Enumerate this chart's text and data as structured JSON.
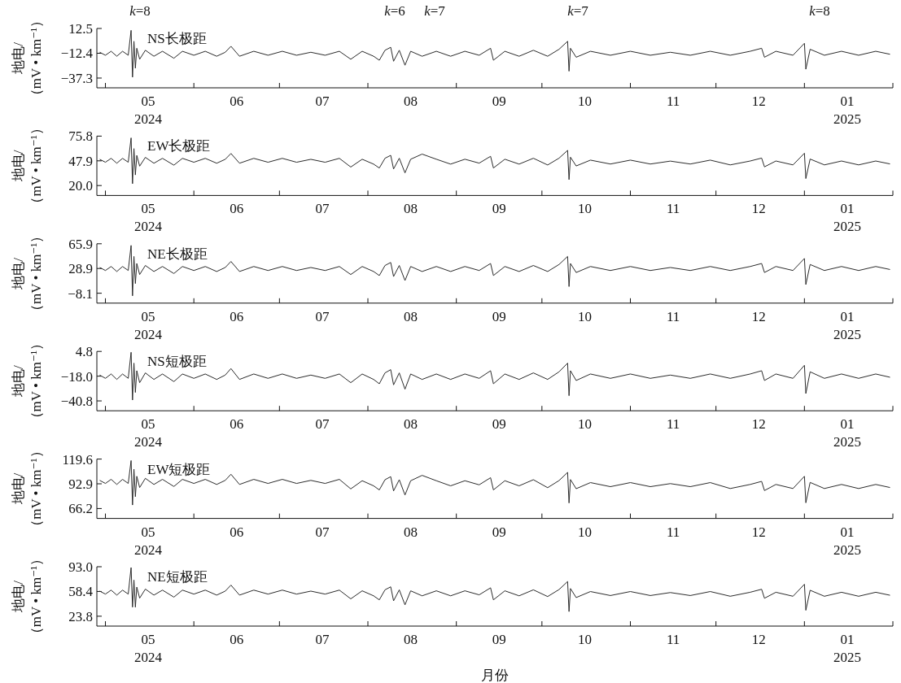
{
  "chart_data": [
    {
      "type": "line",
      "ylabel": "地电/（mV • km⁻¹）",
      "annotations": [
        "k=8",
        "k=6",
        "k=7",
        "k=7",
        "k=8"
      ],
      "xlim": [
        "2024-04-28",
        "2025-02-01"
      ],
      "ylim": [
        -47.1,
        12.5
      ],
      "yticks": [
        12.5,
        {
          "value": -12.4,
          "label": "−12.4"
        },
        {
          "value": -37.3,
          "label": "−37.3"
        }
      ],
      "xticks": [
        {
          "value": "2024-05-01",
          "label": null
        },
        {
          "value": "2024-06-01",
          "label": null
        },
        {
          "value": "2024-07-01",
          "label": null
        },
        {
          "value": "2024-08-01",
          "label": null
        },
        {
          "value": "2024-09-01",
          "label": null
        },
        {
          "value": "2024-10-01",
          "label": null
        },
        {
          "value": "2024-11-01",
          "label": null
        },
        {
          "value": "2024-12-01",
          "label": null
        },
        {
          "value": "2025-01-01",
          "label": null
        },
        {
          "value": "2025-02-01",
          "label": null
        },
        {
          "value": "2024-05-16",
          "label": "05\n2024"
        },
        {
          "value": "2024-06-16",
          "label": "06"
        },
        {
          "value": "2024-07-16",
          "label": "07"
        },
        {
          "value": "2024-08-16",
          "label": "08"
        },
        {
          "value": "2024-09-16",
          "label": "09"
        },
        {
          "value": "2024-10-16",
          "label": "10"
        },
        {
          "value": "2024-11-16",
          "label": "11"
        },
        {
          "value": "2024-12-16",
          "label": "12"
        },
        {
          "value": "2025-01-16",
          "label": "01\n2025"
        }
      ],
      "x": [
        "2024-04-29",
        "2024-05-01",
        "2024-05-03",
        "2024-05-05",
        "2024-05-07",
        "2024-05-09",
        "2024-05-10T00:00",
        "2024-05-10T12:00",
        "2024-05-11T00:00",
        "2024-05-11T12:00",
        "2024-05-12",
        "2024-05-13",
        "2024-05-15",
        "2024-05-18",
        "2024-05-21",
        "2024-05-25",
        "2024-05-28",
        "2024-06-01",
        "2024-06-05",
        "2024-06-09",
        "2024-06-12",
        "2024-06-14",
        "2024-06-17",
        "2024-06-22",
        "2024-06-27",
        "2024-07-02",
        "2024-07-07",
        "2024-07-12",
        "2024-07-17",
        "2024-07-22",
        "2024-07-26",
        "2024-07-30",
        "2024-08-03",
        "2024-08-05",
        "2024-08-07",
        "2024-08-09",
        "2024-08-10",
        "2024-08-12",
        "2024-08-14",
        "2024-08-16",
        "2024-08-20",
        "2024-08-25",
        "2024-08-30",
        "2024-09-04",
        "2024-09-09",
        "2024-09-13",
        "2024-09-14",
        "2024-09-18",
        "2024-09-23",
        "2024-09-28",
        "2024-10-03",
        "2024-10-07",
        "2024-10-10T00:00",
        "2024-10-10T12:00",
        "2024-10-11",
        "2024-10-13",
        "2024-10-18",
        "2024-10-25",
        "2024-11-01",
        "2024-11-08",
        "2024-11-15",
        "2024-11-22",
        "2024-11-29",
        "2024-12-06",
        "2024-12-13",
        "2024-12-17",
        "2024-12-18",
        "2024-12-22",
        "2024-12-28",
        "2025-01-01T00:00",
        "2025-01-01T12:00",
        "2025-01-03",
        "2025-01-08",
        "2025-01-14",
        "2025-01-20",
        "2025-01-26",
        "2025-01-31"
      ],
      "series": [
        {
          "name": "NS长极距",
          "color": "#2b2b2b",
          "values": [
            -11.4,
            -14.4,
            -10.4,
            -15.4,
            -10.4,
            -14.4,
            10.6,
            -36.4,
            -0.4,
            -27.4,
            -7.4,
            -18.4,
            -9.4,
            -15.4,
            -10.4,
            -17.4,
            -10.4,
            -14.4,
            -10.4,
            -15.4,
            -11.4,
            -5.4,
            -15.4,
            -10.4,
            -14.4,
            -10.4,
            -14.4,
            -11.4,
            -14.4,
            -10.4,
            -18.4,
            -10.4,
            -15.4,
            -19.4,
            -9.4,
            -6.4,
            -20.4,
            -9.4,
            -24.4,
            -10.4,
            -15.4,
            -10.4,
            -15.4,
            -10.4,
            -14.4,
            -7.4,
            -19.4,
            -10.4,
            -15.4,
            -9.4,
            -15.4,
            -8.4,
            -0.4,
            -30.4,
            -7.4,
            -16.4,
            -10.4,
            -14.4,
            -10.4,
            -14.4,
            -11.4,
            -14.4,
            -10.4,
            -14.4,
            -10.4,
            -7.4,
            -16.4,
            -10.4,
            -14.4,
            -2.4,
            -28.4,
            -8.4,
            -14.4,
            -10.4,
            -14.4,
            -10.4,
            -13.4
          ]
        }
      ]
    },
    {
      "type": "line",
      "ylabel": "地电/（mV • km⁻¹）",
      "xlim": [
        "2024-04-28",
        "2025-02-01"
      ],
      "ylim": [
        8.8,
        75.8
      ],
      "yticks": [
        75.8,
        47.9,
        {
          "value": 20,
          "label": "20.0"
        }
      ],
      "xticks": [
        {
          "value": "2024-05-01",
          "label": null
        },
        {
          "value": "2024-06-01",
          "label": null
        },
        {
          "value": "2024-07-01",
          "label": null
        },
        {
          "value": "2024-08-01",
          "label": null
        },
        {
          "value": "2024-09-01",
          "label": null
        },
        {
          "value": "2024-10-01",
          "label": null
        },
        {
          "value": "2024-11-01",
          "label": null
        },
        {
          "value": "2024-12-01",
          "label": null
        },
        {
          "value": "2025-01-01",
          "label": null
        },
        {
          "value": "2025-02-01",
          "label": null
        },
        {
          "value": "2024-05-16",
          "label": "05\n2024"
        },
        {
          "value": "2024-06-16",
          "label": "06"
        },
        {
          "value": "2024-07-16",
          "label": "07"
        },
        {
          "value": "2024-08-16",
          "label": "08"
        },
        {
          "value": "2024-09-16",
          "label": "09"
        },
        {
          "value": "2024-10-16",
          "label": "10"
        },
        {
          "value": "2024-11-16",
          "label": "11"
        },
        {
          "value": "2024-12-16",
          "label": "12"
        },
        {
          "value": "2025-01-16",
          "label": "01\n2025"
        }
      ],
      "x": [
        "2024-04-29",
        "2024-05-01",
        "2024-05-03",
        "2024-05-05",
        "2024-05-07",
        "2024-05-09",
        "2024-05-10T00:00",
        "2024-05-10T12:00",
        "2024-05-11T00:00",
        "2024-05-11T12:00",
        "2024-05-12",
        "2024-05-13",
        "2024-05-15",
        "2024-05-18",
        "2024-05-21",
        "2024-05-25",
        "2024-05-28",
        "2024-06-01",
        "2024-06-05",
        "2024-06-09",
        "2024-06-12",
        "2024-06-14",
        "2024-06-17",
        "2024-06-22",
        "2024-06-27",
        "2024-07-02",
        "2024-07-07",
        "2024-07-12",
        "2024-07-17",
        "2024-07-22",
        "2024-07-26",
        "2024-07-30",
        "2024-08-03",
        "2024-08-05",
        "2024-08-07",
        "2024-08-09",
        "2024-08-10",
        "2024-08-12",
        "2024-08-14",
        "2024-08-16",
        "2024-08-20",
        "2024-08-25",
        "2024-08-30",
        "2024-09-04",
        "2024-09-09",
        "2024-09-13",
        "2024-09-14",
        "2024-09-18",
        "2024-09-23",
        "2024-09-28",
        "2024-10-03",
        "2024-10-07",
        "2024-10-10T00:00",
        "2024-10-10T12:00",
        "2024-10-11",
        "2024-10-13",
        "2024-10-18",
        "2024-10-25",
        "2024-11-01",
        "2024-11-08",
        "2024-11-15",
        "2024-11-22",
        "2024-11-29",
        "2024-12-06",
        "2024-12-13",
        "2024-12-17",
        "2024-12-18",
        "2024-12-22",
        "2024-12-28",
        "2025-01-01T00:00",
        "2025-01-01T12:00",
        "2025-01-03",
        "2025-01-08",
        "2025-01-14",
        "2025-01-20",
        "2025-01-26",
        "2025-01-31"
      ],
      "series": [
        {
          "name": "EW长极距",
          "color": "#2b2b2b",
          "values": [
            49.6,
            46.3,
            50.7,
            45.2,
            50.7,
            46.3,
            73.8,
            22.1,
            61.7,
            32.0,
            54.0,
            41.9,
            51.8,
            45.2,
            50.7,
            43.0,
            50.7,
            46.3,
            50.7,
            45.2,
            49.6,
            56.2,
            45.2,
            50.7,
            46.3,
            50.7,
            46.3,
            49.6,
            46.3,
            50.7,
            40.9,
            49.7,
            44.2,
            39.8,
            50.8,
            54.1,
            38.7,
            50.8,
            34.3,
            49.7,
            55.5,
            49.7,
            44.2,
            49.7,
            45.3,
            53.0,
            39.8,
            49.7,
            44.2,
            50.8,
            43.2,
            50.9,
            59.7,
            26.7,
            52.0,
            42.1,
            48.7,
            44.3,
            48.7,
            44.3,
            47.6,
            44.3,
            48.7,
            43.3,
            47.7,
            51.0,
            41.1,
            47.7,
            43.3,
            56.5,
            27.9,
            49.9,
            43.3,
            47.7,
            43.3,
            47.7,
            44.4
          ]
        }
      ]
    },
    {
      "type": "line",
      "ylabel": "地电/（mV • km⁻¹）",
      "xlim": [
        "2024-04-28",
        "2025-02-01"
      ],
      "ylim": [
        -22.9,
        65.9
      ],
      "yticks": [
        65.9,
        28.9,
        {
          "value": -8.1,
          "label": "−8.1"
        }
      ],
      "xticks": [
        {
          "value": "2024-05-01",
          "label": null
        },
        {
          "value": "2024-06-01",
          "label": null
        },
        {
          "value": "2024-07-01",
          "label": null
        },
        {
          "value": "2024-08-01",
          "label": null
        },
        {
          "value": "2024-09-01",
          "label": null
        },
        {
          "value": "2024-10-01",
          "label": null
        },
        {
          "value": "2024-11-01",
          "label": null
        },
        {
          "value": "2024-12-01",
          "label": null
        },
        {
          "value": "2025-01-01",
          "label": null
        },
        {
          "value": "2025-02-01",
          "label": null
        },
        {
          "value": "2024-05-16",
          "label": "05\n2024"
        },
        {
          "value": "2024-06-16",
          "label": "06"
        },
        {
          "value": "2024-07-16",
          "label": "07"
        },
        {
          "value": "2024-08-16",
          "label": "08"
        },
        {
          "value": "2024-09-16",
          "label": "09"
        },
        {
          "value": "2024-10-16",
          "label": "10"
        },
        {
          "value": "2024-11-16",
          "label": "11"
        },
        {
          "value": "2024-12-16",
          "label": "12"
        },
        {
          "value": "2025-01-16",
          "label": "01\n2025"
        }
      ],
      "x": [
        "2024-04-29",
        "2024-05-01",
        "2024-05-03",
        "2024-05-05",
        "2024-05-07",
        "2024-05-09",
        "2024-05-10T00:00",
        "2024-05-10T12:00",
        "2024-05-11T00:00",
        "2024-05-11T12:00",
        "2024-05-12",
        "2024-05-13",
        "2024-05-15",
        "2024-05-18",
        "2024-05-21",
        "2024-05-25",
        "2024-05-28",
        "2024-06-01",
        "2024-06-05",
        "2024-06-09",
        "2024-06-12",
        "2024-06-14",
        "2024-06-17",
        "2024-06-22",
        "2024-06-27",
        "2024-07-02",
        "2024-07-07",
        "2024-07-12",
        "2024-07-17",
        "2024-07-22",
        "2024-07-26",
        "2024-07-30",
        "2024-08-03",
        "2024-08-05",
        "2024-08-07",
        "2024-08-09",
        "2024-08-10",
        "2024-08-12",
        "2024-08-14",
        "2024-08-16",
        "2024-08-20",
        "2024-08-25",
        "2024-08-30",
        "2024-09-04",
        "2024-09-09",
        "2024-09-13",
        "2024-09-14",
        "2024-09-18",
        "2024-09-23",
        "2024-09-28",
        "2024-10-03",
        "2024-10-07",
        "2024-10-10T00:00",
        "2024-10-10T12:00",
        "2024-10-11",
        "2024-10-13",
        "2024-10-18",
        "2024-10-25",
        "2024-11-01",
        "2024-11-08",
        "2024-11-15",
        "2024-11-22",
        "2024-11-29",
        "2024-12-06",
        "2024-12-13",
        "2024-12-17",
        "2024-12-18",
        "2024-12-22",
        "2024-12-28",
        "2025-01-01T00:00",
        "2025-01-01T12:00",
        "2025-01-03",
        "2025-01-08",
        "2025-01-14",
        "2025-01-20",
        "2025-01-26",
        "2025-01-31"
      ],
      "series": [
        {
          "name": "NE长极距",
          "color": "#2b2b2b",
          "values": [
            30.4,
            25.9,
            31.9,
            24.4,
            31.9,
            25.9,
            63.4,
            -12.0,
            46.9,
            6.4,
            36.4,
            19.9,
            33.4,
            24.4,
            31.9,
            21.4,
            31.9,
            25.9,
            31.9,
            24.4,
            30.4,
            39.4,
            24.4,
            31.9,
            25.9,
            31.9,
            25.9,
            30.4,
            25.9,
            31.9,
            19.9,
            31.9,
            24.4,
            18.4,
            33.4,
            37.9,
            16.9,
            33.4,
            10.9,
            31.9,
            24.4,
            31.9,
            24.4,
            31.9,
            25.9,
            36.4,
            18.4,
            31.9,
            24.4,
            33.4,
            24.4,
            34.9,
            46.9,
            1.9,
            36.4,
            22.9,
            31.9,
            25.9,
            31.9,
            25.9,
            30.4,
            25.9,
            31.9,
            25.9,
            31.9,
            36.4,
            22.9,
            31.9,
            25.9,
            43.9,
            4.9,
            34.9,
            25.9,
            31.9,
            25.9,
            31.9,
            27.4
          ]
        }
      ]
    },
    {
      "type": "line",
      "ylabel": "地电/（mV • km⁻¹）",
      "xlim": [
        "2024-04-28",
        "2025-02-01"
      ],
      "ylim": [
        -49.9,
        4.8
      ],
      "yticks": [
        4.8,
        {
          "value": -18,
          "label": "−18.0"
        },
        {
          "value": -40.8,
          "label": "−40.8"
        }
      ],
      "xticks": [
        {
          "value": "2024-05-01",
          "label": null
        },
        {
          "value": "2024-06-01",
          "label": null
        },
        {
          "value": "2024-07-01",
          "label": null
        },
        {
          "value": "2024-08-01",
          "label": null
        },
        {
          "value": "2024-09-01",
          "label": null
        },
        {
          "value": "2024-10-01",
          "label": null
        },
        {
          "value": "2024-11-01",
          "label": null
        },
        {
          "value": "2024-12-01",
          "label": null
        },
        {
          "value": "2025-01-01",
          "label": null
        },
        {
          "value": "2025-02-01",
          "label": null
        },
        {
          "value": "2024-05-16",
          "label": "05\n2024"
        },
        {
          "value": "2024-06-16",
          "label": "06"
        },
        {
          "value": "2024-07-16",
          "label": "07"
        },
        {
          "value": "2024-08-16",
          "label": "08"
        },
        {
          "value": "2024-09-16",
          "label": "09"
        },
        {
          "value": "2024-10-16",
          "label": "10"
        },
        {
          "value": "2024-11-16",
          "label": "11"
        },
        {
          "value": "2024-12-16",
          "label": "12"
        },
        {
          "value": "2025-01-16",
          "label": "01\n2025"
        }
      ],
      "x": [
        "2024-04-29",
        "2024-05-01",
        "2024-05-03",
        "2024-05-05",
        "2024-05-07",
        "2024-05-09",
        "2024-05-10T00:00",
        "2024-05-10T12:00",
        "2024-05-11T00:00",
        "2024-05-11T12:00",
        "2024-05-12",
        "2024-05-13",
        "2024-05-15",
        "2024-05-18",
        "2024-05-21",
        "2024-05-25",
        "2024-05-28",
        "2024-06-01",
        "2024-06-05",
        "2024-06-09",
        "2024-06-12",
        "2024-06-14",
        "2024-06-17",
        "2024-06-22",
        "2024-06-27",
        "2024-07-02",
        "2024-07-07",
        "2024-07-12",
        "2024-07-17",
        "2024-07-22",
        "2024-07-26",
        "2024-07-30",
        "2024-08-03",
        "2024-08-05",
        "2024-08-07",
        "2024-08-09",
        "2024-08-10",
        "2024-08-12",
        "2024-08-14",
        "2024-08-16",
        "2024-08-20",
        "2024-08-25",
        "2024-08-30",
        "2024-09-04",
        "2024-09-09",
        "2024-09-13",
        "2024-09-14",
        "2024-09-18",
        "2024-09-23",
        "2024-09-28",
        "2024-10-03",
        "2024-10-07",
        "2024-10-10T00:00",
        "2024-10-10T12:00",
        "2024-10-11",
        "2024-10-13",
        "2024-10-18",
        "2024-10-25",
        "2024-11-01",
        "2024-11-08",
        "2024-11-15",
        "2024-11-22",
        "2024-11-29",
        "2024-12-06",
        "2024-12-13",
        "2024-12-17",
        "2024-12-18",
        "2024-12-22",
        "2024-12-28",
        "2025-01-01T00:00",
        "2025-01-01T12:00",
        "2025-01-03",
        "2025-01-08",
        "2025-01-14",
        "2025-01-20",
        "2025-01-26",
        "2025-01-31"
      ],
      "series": [
        {
          "name": "NS短极距",
          "color": "#2b2b2b",
          "values": [
            -17,
            -20,
            -16,
            -21,
            -16,
            -20,
            4,
            -40,
            -6,
            -33,
            -13,
            -24,
            -15,
            -21,
            -16,
            -23,
            -16,
            -20,
            -16,
            -21,
            -17,
            -11,
            -21,
            -16,
            -20,
            -16,
            -20,
            -17,
            -20,
            -16,
            -24,
            -16,
            -21,
            -25,
            -15,
            -12,
            -26,
            -15,
            -30,
            -16,
            -21,
            -16,
            -21,
            -16,
            -20,
            -13,
            -25,
            -16,
            -21,
            -15,
            -21,
            -14,
            -6,
            -36,
            -13,
            -22,
            -16,
            -20,
            -16,
            -20,
            -17,
            -20,
            -16,
            -20,
            -16,
            -13,
            -22,
            -16,
            -20,
            -8,
            -34,
            -14,
            -20,
            -16,
            -20,
            -16,
            -19
          ]
        }
      ]
    },
    {
      "type": "line",
      "ylabel": "地电/（mV • km⁻¹）",
      "xlim": [
        "2024-04-28",
        "2025-02-01"
      ],
      "ylim": [
        55.5,
        119.6
      ],
      "yticks": [
        119.6,
        92.9,
        66.2
      ],
      "xticks": [
        {
          "value": "2024-05-01",
          "label": null
        },
        {
          "value": "2024-06-01",
          "label": null
        },
        {
          "value": "2024-07-01",
          "label": null
        },
        {
          "value": "2024-08-01",
          "label": null
        },
        {
          "value": "2024-09-01",
          "label": null
        },
        {
          "value": "2024-10-01",
          "label": null
        },
        {
          "value": "2024-11-01",
          "label": null
        },
        {
          "value": "2024-12-01",
          "label": null
        },
        {
          "value": "2025-01-01",
          "label": null
        },
        {
          "value": "2025-02-01",
          "label": null
        },
        {
          "value": "2024-05-16",
          "label": "05\n2024"
        },
        {
          "value": "2024-06-16",
          "label": "06"
        },
        {
          "value": "2024-07-16",
          "label": "07"
        },
        {
          "value": "2024-08-16",
          "label": "08"
        },
        {
          "value": "2024-09-16",
          "label": "09"
        },
        {
          "value": "2024-10-16",
          "label": "10"
        },
        {
          "value": "2024-11-16",
          "label": "11"
        },
        {
          "value": "2024-12-16",
          "label": "12"
        },
        {
          "value": "2025-01-16",
          "label": "01\n2025"
        }
      ],
      "x": [
        "2024-04-29",
        "2024-05-01",
        "2024-05-03",
        "2024-05-05",
        "2024-05-07",
        "2024-05-09",
        "2024-05-10T00:00",
        "2024-05-10T12:00",
        "2024-05-11T00:00",
        "2024-05-11T12:00",
        "2024-05-12",
        "2024-05-13",
        "2024-05-15",
        "2024-05-18",
        "2024-05-21",
        "2024-05-25",
        "2024-05-28",
        "2024-06-01",
        "2024-06-05",
        "2024-06-09",
        "2024-06-12",
        "2024-06-14",
        "2024-06-17",
        "2024-06-22",
        "2024-06-27",
        "2024-07-02",
        "2024-07-07",
        "2024-07-12",
        "2024-07-17",
        "2024-07-22",
        "2024-07-26",
        "2024-07-30",
        "2024-08-03",
        "2024-08-05",
        "2024-08-07",
        "2024-08-09",
        "2024-08-10",
        "2024-08-12",
        "2024-08-14",
        "2024-08-16",
        "2024-08-20",
        "2024-08-25",
        "2024-08-30",
        "2024-09-04",
        "2024-09-09",
        "2024-09-13",
        "2024-09-14",
        "2024-09-18",
        "2024-09-23",
        "2024-09-28",
        "2024-10-03",
        "2024-10-07",
        "2024-10-10T00:00",
        "2024-10-10T12:00",
        "2024-10-11",
        "2024-10-13",
        "2024-10-18",
        "2024-10-25",
        "2024-11-01",
        "2024-11-08",
        "2024-11-15",
        "2024-11-22",
        "2024-11-29",
        "2024-12-06",
        "2024-12-13",
        "2024-12-17",
        "2024-12-18",
        "2024-12-22",
        "2024-12-28",
        "2025-01-01T00:00",
        "2025-01-01T12:00",
        "2025-01-03",
        "2025-01-08",
        "2025-01-14",
        "2025-01-20",
        "2025-01-26",
        "2025-01-31"
      ],
      "series": [
        {
          "name": "EW短极距",
          "color": "#2b2b2b",
          "values": [
            96.6,
            93.3,
            97.7,
            92.2,
            97.7,
            93.3,
            118.0,
            70.0,
            108.7,
            79.0,
            101.0,
            88.9,
            98.8,
            92.2,
            97.7,
            90.0,
            97.7,
            93.3,
            97.7,
            92.2,
            96.6,
            103.2,
            92.2,
            97.7,
            93.3,
            97.7,
            93.3,
            96.6,
            93.3,
            97.7,
            87.4,
            96.2,
            90.7,
            86.3,
            97.3,
            100.6,
            85.2,
            97.3,
            80.8,
            96.2,
            102.0,
            96.2,
            90.7,
            96.2,
            91.8,
            99.5,
            86.3,
            96.2,
            90.7,
            97.3,
            88.7,
            96.4,
            105.2,
            72.2,
            97.5,
            87.6,
            94.2,
            89.8,
            94.2,
            89.8,
            93.1,
            89.8,
            94.2,
            87.8,
            92.2,
            95.5,
            85.6,
            92.2,
            87.8,
            101.0,
            72.4,
            94.4,
            87.8,
            92.2,
            87.8,
            92.2,
            88.9
          ]
        }
      ]
    },
    {
      "type": "line",
      "ylabel": "地电/（mV • km⁻¹）",
      "xlabel": "月份",
      "xlim": [
        "2024-04-28",
        "2025-02-01"
      ],
      "ylim": [
        10.0,
        93.0
      ],
      "yticks": [
        {
          "value": 93,
          "label": "93.0"
        },
        58.4,
        23.8
      ],
      "xticks": [
        {
          "value": "2024-05-01",
          "label": null
        },
        {
          "value": "2024-06-01",
          "label": null
        },
        {
          "value": "2024-07-01",
          "label": null
        },
        {
          "value": "2024-08-01",
          "label": null
        },
        {
          "value": "2024-09-01",
          "label": null
        },
        {
          "value": "2024-10-01",
          "label": null
        },
        {
          "value": "2024-11-01",
          "label": null
        },
        {
          "value": "2024-12-01",
          "label": null
        },
        {
          "value": "2025-01-01",
          "label": null
        },
        {
          "value": "2025-02-01",
          "label": null
        },
        {
          "value": "2024-05-16",
          "label": "05\n2024"
        },
        {
          "value": "2024-06-16",
          "label": "06"
        },
        {
          "value": "2024-07-16",
          "label": "07"
        },
        {
          "value": "2024-08-16",
          "label": "08"
        },
        {
          "value": "2024-09-16",
          "label": "09"
        },
        {
          "value": "2024-10-16",
          "label": "10"
        },
        {
          "value": "2024-11-16",
          "label": "11"
        },
        {
          "value": "2024-12-16",
          "label": "12"
        },
        {
          "value": "2025-01-16",
          "label": "01\n2025"
        }
      ],
      "x": [
        "2024-04-29",
        "2024-05-01",
        "2024-05-03",
        "2024-05-05",
        "2024-05-07",
        "2024-05-09",
        "2024-05-10T00:00",
        "2024-05-10T12:00",
        "2024-05-11T00:00",
        "2024-05-11T12:00",
        "2024-05-12",
        "2024-05-13",
        "2024-05-15",
        "2024-05-18",
        "2024-05-21",
        "2024-05-25",
        "2024-05-28",
        "2024-06-01",
        "2024-06-05",
        "2024-06-09",
        "2024-06-12",
        "2024-06-14",
        "2024-06-17",
        "2024-06-22",
        "2024-06-27",
        "2024-07-02",
        "2024-07-07",
        "2024-07-12",
        "2024-07-17",
        "2024-07-22",
        "2024-07-26",
        "2024-07-30",
        "2024-08-03",
        "2024-08-05",
        "2024-08-07",
        "2024-08-09",
        "2024-08-10",
        "2024-08-12",
        "2024-08-14",
        "2024-08-16",
        "2024-08-20",
        "2024-08-25",
        "2024-08-30",
        "2024-09-04",
        "2024-09-09",
        "2024-09-13",
        "2024-09-14",
        "2024-09-18",
        "2024-09-23",
        "2024-09-28",
        "2024-10-03",
        "2024-10-07",
        "2024-10-10T00:00",
        "2024-10-10T12:00",
        "2024-10-11",
        "2024-10-13",
        "2024-10-18",
        "2024-10-25",
        "2024-11-01",
        "2024-11-08",
        "2024-11-15",
        "2024-11-22",
        "2024-11-29",
        "2024-12-06",
        "2024-12-13",
        "2024-12-17",
        "2024-12-18",
        "2024-12-22",
        "2024-12-28",
        "2025-01-01T00:00",
        "2025-01-01T12:00",
        "2025-01-03",
        "2025-01-08",
        "2025-01-14",
        "2025-01-20",
        "2025-01-26",
        "2025-01-31"
      ],
      "series": [
        {
          "name": "NE短极距",
          "color": "#2b2b2b",
          "values": [
            58.9,
            54.7,
            60.3,
            53.3,
            60.3,
            54.7,
            91.8,
            36.5,
            74.3,
            36.5,
            64.5,
            49.1,
            61.7,
            53.3,
            60.3,
            50.5,
            60.3,
            54.7,
            60.3,
            53.3,
            58.9,
            67.3,
            53.3,
            60.3,
            54.7,
            60.3,
            54.7,
            58.9,
            54.7,
            60.3,
            48.1,
            59.3,
            52.3,
            46.7,
            60.7,
            64.9,
            45.3,
            60.7,
            39.7,
            59.3,
            52.3,
            59.3,
            52.3,
            59.3,
            53.7,
            63.5,
            46.7,
            59.3,
            52.3,
            60.7,
            51.3,
            61.1,
            72.3,
            30.3,
            62.5,
            49.9,
            58.3,
            52.7,
            58.3,
            52.7,
            56.9,
            52.7,
            58.3,
            51.7,
            57.3,
            61.5,
            48.9,
            57.3,
            51.7,
            68.5,
            32.1,
            60.1,
            51.7,
            57.3,
            51.7,
            57.3,
            53.1
          ]
        }
      ]
    }
  ]
}
